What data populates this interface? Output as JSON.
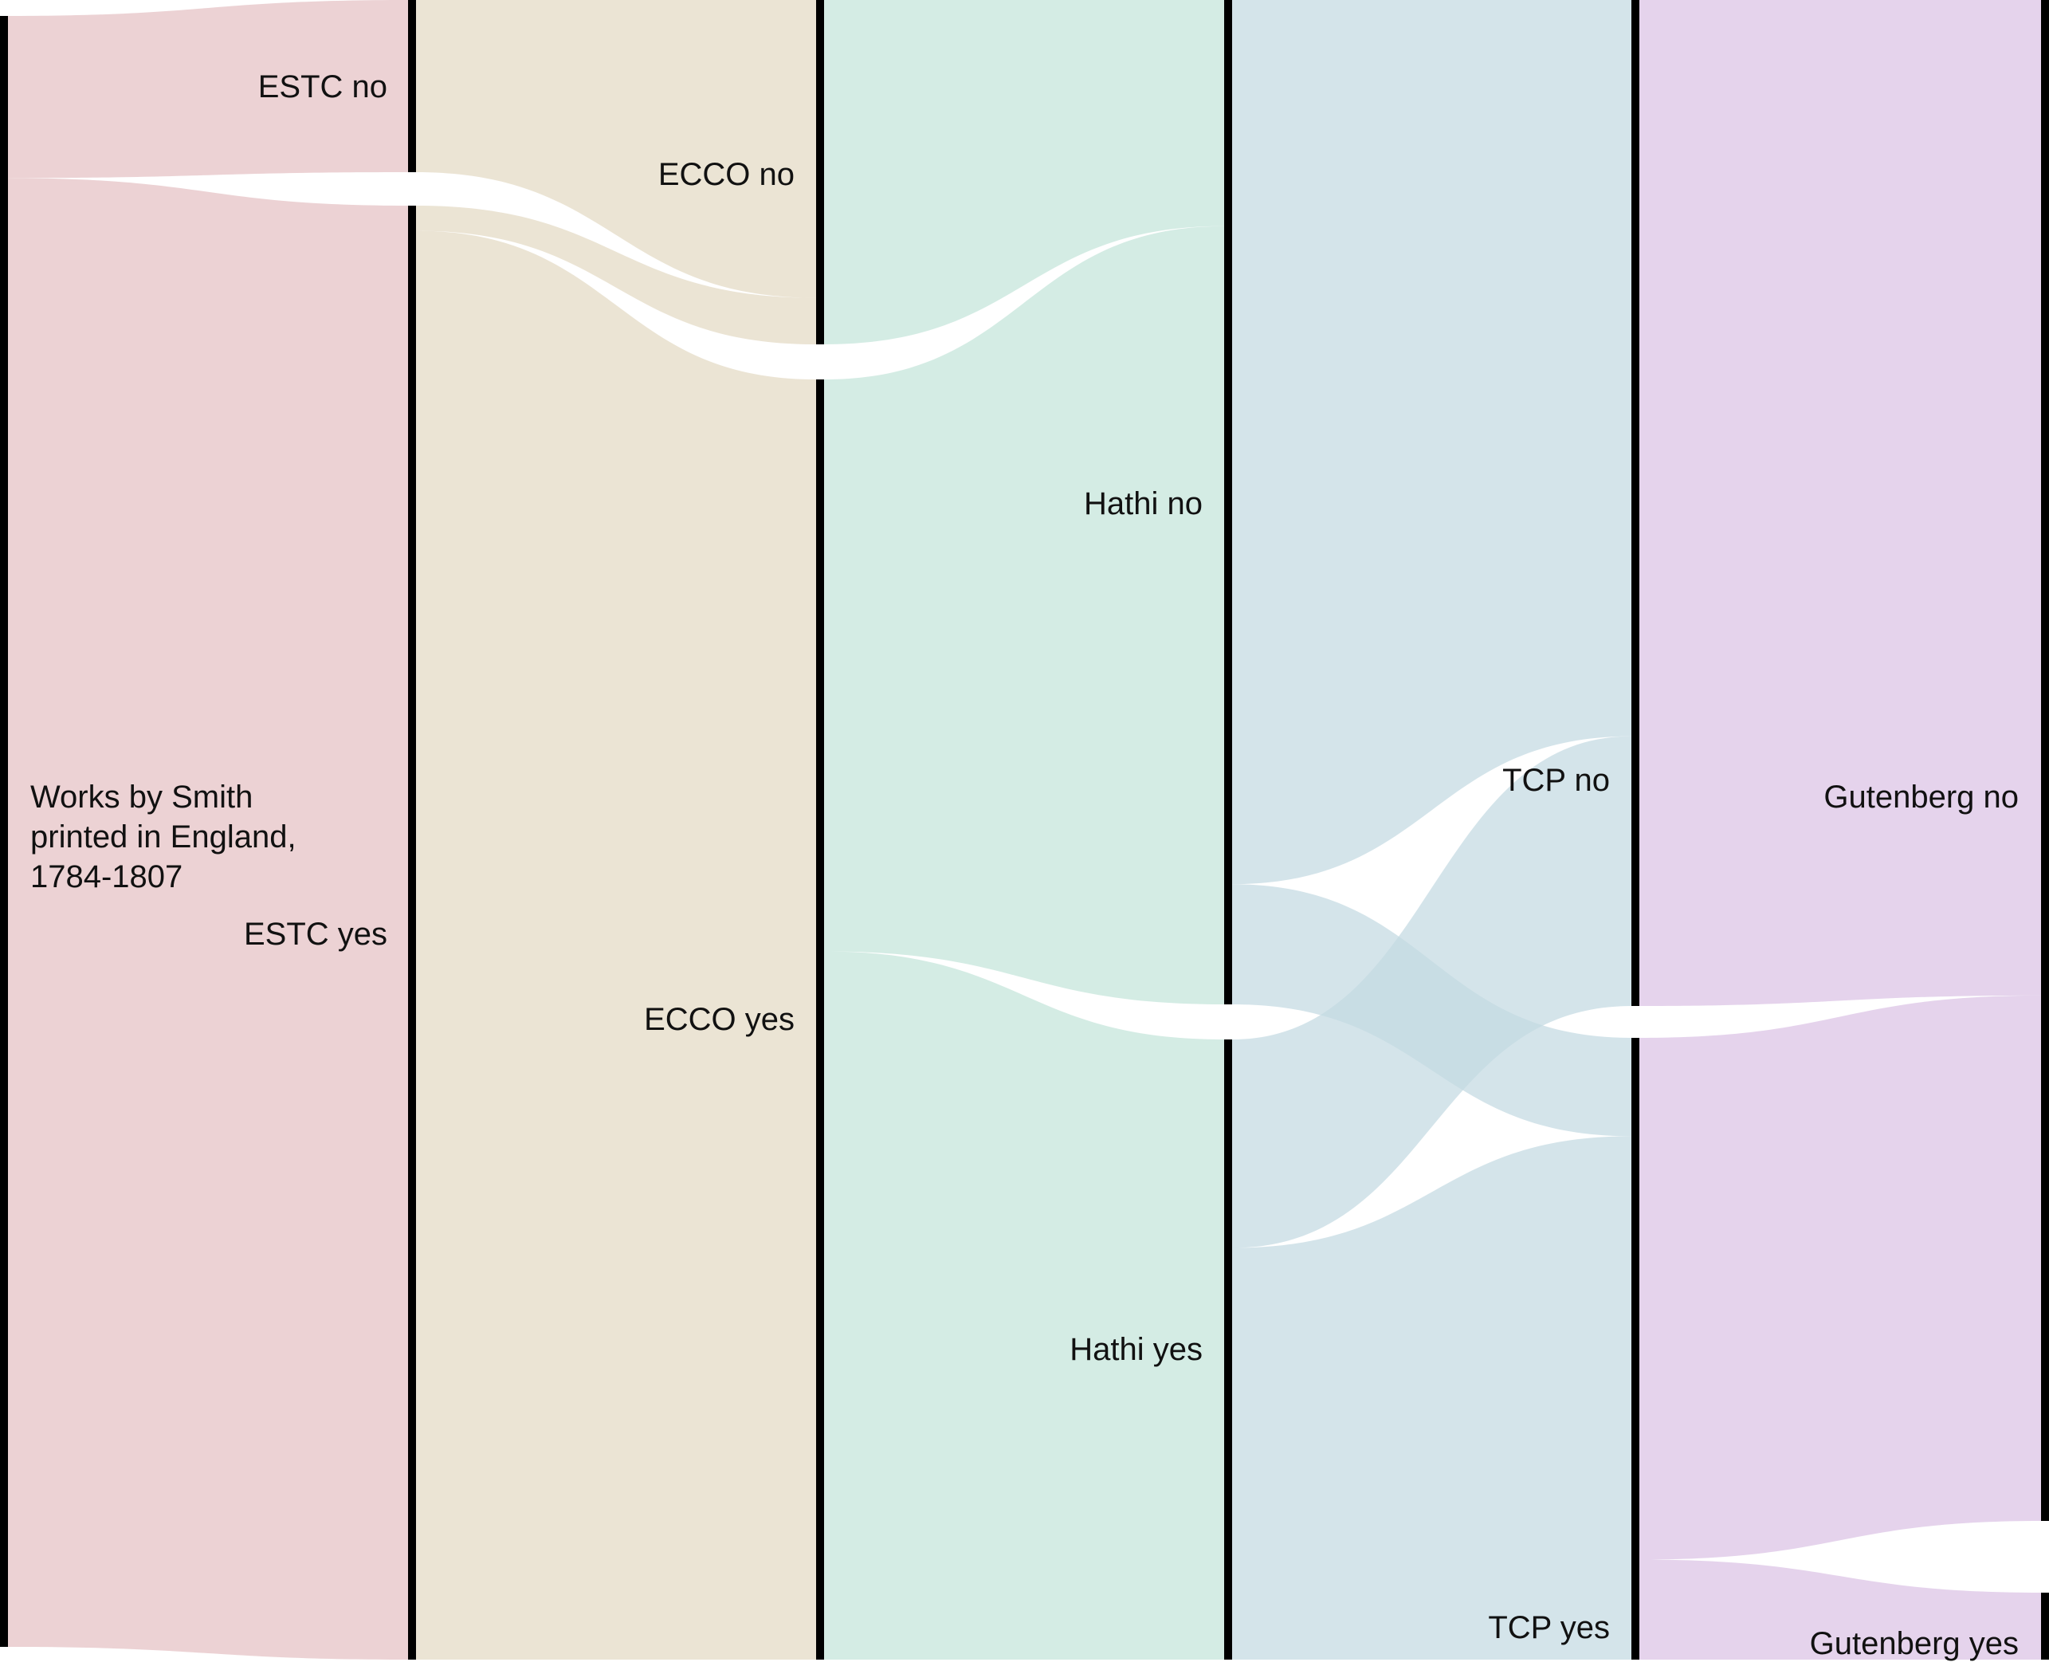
{
  "chart_data": {
    "type": "sankey",
    "title": "",
    "unit": "",
    "source_label": [
      "Works by Smith",
      "printed in England,",
      "1784-1807"
    ],
    "columns": [
      {
        "name": "ESTC",
        "nodes": [
          {
            "label": "ESTC no",
            "value": 9.6
          },
          {
            "label": "ESTC yes",
            "value": 87.0
          }
        ],
        "color": "#e4c1c3"
      },
      {
        "name": "ECCO",
        "nodes": [
          {
            "label": "ECCO no",
            "value": 11.1
          },
          {
            "label": "ECCO yes",
            "value": 85.5
          }
        ],
        "color": "#e3dac4"
      },
      {
        "name": "Hathi",
        "nodes": [
          {
            "label": "Hathi no",
            "value": 49.3
          },
          {
            "label": "Hathi yes",
            "value": 47.3
          }
        ],
        "color": "#c4e4d9"
      },
      {
        "name": "TCP",
        "nodes": [
          {
            "label": "TCP no",
            "value": 59.3
          },
          {
            "label": "TCP yes",
            "value": 37.3
          }
        ],
        "color": "#c3d9e2"
      },
      {
        "name": "Gutenberg",
        "nodes": [
          {
            "label": "Gutenberg no",
            "value": 90.6
          },
          {
            "label": "Gutenberg yes",
            "value": 6.0
          }
        ],
        "color": "#dbc2e4"
      }
    ],
    "flows": [
      {
        "source": "Works by Smith printed in England, 1784-1807",
        "target": "ESTC no",
        "value": 9.6
      },
      {
        "source": "Works by Smith printed in England, 1784-1807",
        "target": "ESTC yes",
        "value": 87.0
      },
      {
        "source": "ESTC no",
        "target": "ECCO no",
        "value": 9.6
      },
      {
        "source": "ESTC yes",
        "target": "ECCO no",
        "value": 1.5
      },
      {
        "source": "ESTC yes",
        "target": "ECCO yes",
        "value": 85.5
      },
      {
        "source": "ECCO no",
        "target": "Hathi no",
        "value": 11.1
      },
      {
        "source": "ECCO yes",
        "target": "Hathi no",
        "value": 38.2
      },
      {
        "source": "ECCO yes",
        "target": "Hathi yes",
        "value": 47.3
      },
      {
        "source": "Hathi no",
        "target": "TCP no",
        "value": 43.4
      },
      {
        "source": "Hathi no",
        "target": "TCP yes",
        "value": 5.9
      },
      {
        "source": "Hathi yes",
        "target": "TCP no",
        "value": 15.9
      },
      {
        "source": "Hathi yes",
        "target": "TCP yes",
        "value": 31.4
      },
      {
        "source": "TCP no",
        "target": "Gutenberg no",
        "value": 59.3
      },
      {
        "source": "TCP yes",
        "target": "Gutenberg no",
        "value": 31.3
      },
      {
        "source": "TCP yes",
        "target": "Gutenberg yes",
        "value": 6.0
      }
    ]
  }
}
